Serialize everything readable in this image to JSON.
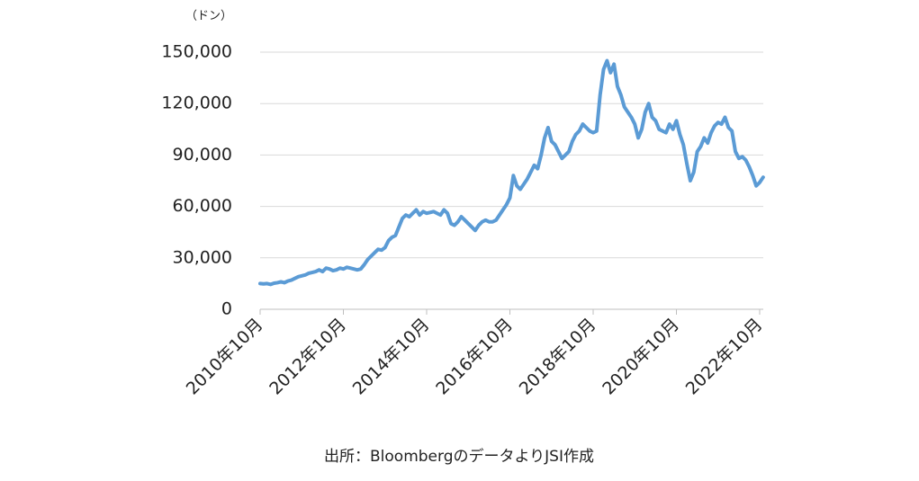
{
  "chart_data": {
    "type": "line",
    "unit_label": "（ドン）",
    "source": "出所：BloombergのデータよりJSI作成",
    "categories": [
      "2010年10月",
      null,
      null,
      null,
      null,
      null,
      null,
      null,
      null,
      null,
      null,
      null,
      null,
      null,
      null,
      null,
      null,
      null,
      null,
      null,
      null,
      null,
      null,
      null,
      "2012年10月",
      null,
      null,
      null,
      null,
      null,
      null,
      null,
      null,
      null,
      null,
      null,
      null,
      null,
      null,
      null,
      null,
      null,
      null,
      null,
      null,
      null,
      null,
      null,
      "2014年10月",
      null,
      null,
      null,
      null,
      null,
      null,
      null,
      null,
      null,
      null,
      null,
      null,
      null,
      null,
      null,
      null,
      null,
      null,
      null,
      null,
      null,
      null,
      null,
      "2016年10月",
      null,
      null,
      null,
      null,
      null,
      null,
      null,
      null,
      null,
      null,
      null,
      null,
      null,
      null,
      null,
      null,
      null,
      null,
      null,
      null,
      null,
      null,
      null,
      "2018年10月",
      null,
      null,
      null,
      null,
      null,
      null,
      null,
      null,
      null,
      null,
      null,
      null,
      null,
      null,
      null,
      null,
      null,
      null,
      null,
      null,
      null,
      null,
      null,
      "2020年10月",
      null,
      null,
      null,
      null,
      null,
      null,
      null,
      null,
      null,
      null,
      null,
      null,
      null,
      null,
      null,
      null,
      null,
      null,
      null,
      null,
      null,
      null,
      null,
      "2022年10月",
      null
    ],
    "series": [
      {
        "color": "#5b9bd5",
        "values": [
          15000,
          14800,
          15000,
          14500,
          15200,
          15500,
          16000,
          15500,
          16500,
          17000,
          18000,
          19000,
          19500,
          20000,
          21000,
          21500,
          22000,
          23000,
          22000,
          24000,
          23500,
          22500,
          23000,
          24000,
          23500,
          24500,
          24000,
          23500,
          23000,
          23500,
          26000,
          29000,
          31000,
          33000,
          35000,
          34500,
          36000,
          40000,
          42000,
          43000,
          48000,
          53000,
          55000,
          54000,
          56000,
          58000,
          55000,
          57000,
          56000,
          56500,
          57000,
          56000,
          55000,
          58000,
          56000,
          50000,
          49000,
          51000,
          54000,
          52000,
          50000,
          48000,
          46000,
          49000,
          51000,
          52000,
          51000,
          51000,
          52000,
          55000,
          58000,
          61000,
          65000,
          78000,
          72000,
          70000,
          73000,
          76000,
          80000,
          84000,
          82000,
          90000,
          100000,
          106000,
          98000,
          96000,
          92000,
          88000,
          90000,
          92000,
          98000,
          102000,
          104000,
          108000,
          106000,
          104000,
          103000,
          104000,
          125000,
          140000,
          145000,
          138000,
          143000,
          130000,
          125000,
          118000,
          115000,
          112000,
          108000,
          100000,
          105000,
          115000,
          120000,
          112000,
          110000,
          105000,
          104000,
          103000,
          108000,
          105000,
          110000,
          102000,
          96000,
          85000,
          75000,
          80000,
          92000,
          95000,
          100000,
          97000,
          103000,
          107000,
          109000,
          108000,
          112000,
          106000,
          104000,
          92000,
          88000,
          89000,
          87000,
          83000,
          78000,
          72000,
          74000,
          77000
        ]
      }
    ],
    "ylim": [
      0,
      150000
    ],
    "yticks": [
      0,
      {
        "value": 30000,
        "label": "30,000"
      },
      {
        "value": 60000,
        "label": "60,000"
      },
      {
        "value": 90000,
        "label": "90,000"
      },
      {
        "value": 120000,
        "label": "120,000"
      },
      {
        "value": 150000,
        "label": "150,000"
      }
    ],
    "grid": true
  }
}
